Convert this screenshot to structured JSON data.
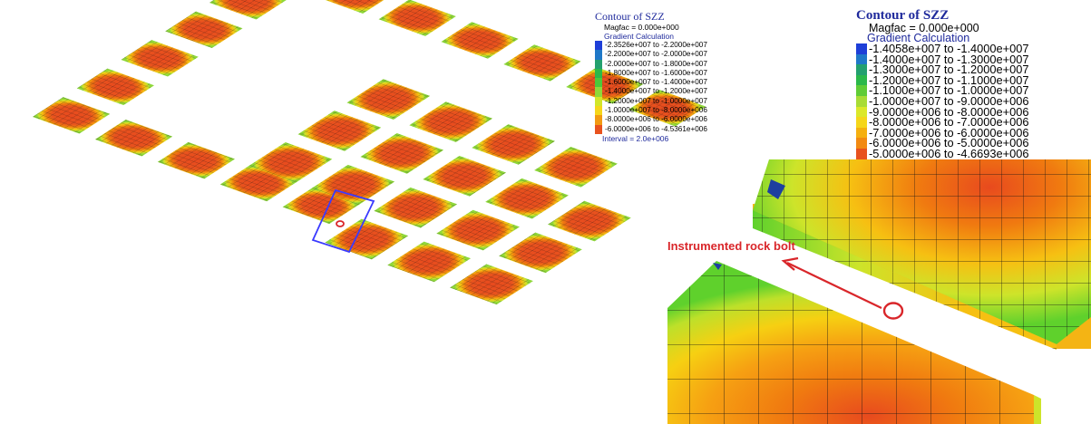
{
  "colors": {
    "core": "#e84a1e",
    "mid": "#f07a10",
    "outer": "#f6c012",
    "edge": "#cde42a",
    "ring_green": "#5fd12c",
    "deep_green": "#1f8f2a",
    "deep_blue": "#1d3fa0",
    "mesh": "#141414",
    "legend_title": "#1f2a9c",
    "annotation": "#d9262a",
    "bolt_box": "#3a3aff"
  },
  "legend_left": {
    "title": "Contour of SZZ",
    "magfac": "Magfac = 0.000e+000",
    "subtitle": "Gradient Calculation",
    "interval": "Interval = 2.0e+006",
    "rows": [
      {
        "label": "-2.3526e+007 to -2.2000e+007",
        "color": "#1e3fd8"
      },
      {
        "label": "-2.2000e+007 to -2.0000e+007",
        "color": "#1f78c8"
      },
      {
        "label": "-2.0000e+007 to -1.8000e+007",
        "color": "#23a06f"
      },
      {
        "label": "-1.8000e+007 to -1.6000e+007",
        "color": "#2bb84a"
      },
      {
        "label": "-1.6000e+007 to -1.4000e+007",
        "color": "#4cc83a"
      },
      {
        "label": "-1.4000e+007 to -1.2000e+007",
        "color": "#8fd83a"
      },
      {
        "label": "-1.2000e+007 to -1.0000e+007",
        "color": "#d2e62a"
      },
      {
        "label": "-1.0000e+007 to -8.0000e+006",
        "color": "#f5d61a"
      },
      {
        "label": "-8.0000e+006 to -6.0000e+006",
        "color": "#f29a12"
      },
      {
        "label": "-6.0000e+006 to -4.5361e+006",
        "color": "#e8521e"
      }
    ]
  },
  "legend_right": {
    "title": "Contour of SZZ",
    "magfac": "Magfac = 0.000e+000",
    "subtitle": "Gradient Calculation",
    "rows": [
      {
        "label": "-1.4058e+007 to -1.4000e+007",
        "color": "#1e3fd8"
      },
      {
        "label": "-1.4000e+007 to -1.3000e+007",
        "color": "#1f78c8"
      },
      {
        "label": "-1.3000e+007 to -1.2000e+007",
        "color": "#23a06f"
      },
      {
        "label": "-1.2000e+007 to -1.1000e+007",
        "color": "#2bb84a"
      },
      {
        "label": "-1.1000e+007 to -1.0000e+007",
        "color": "#60cc36"
      },
      {
        "label": "-1.0000e+007 to -9.0000e+006",
        "color": "#a8dc36"
      },
      {
        "label": "-9.0000e+006 to -8.0000e+006",
        "color": "#dbe82a"
      },
      {
        "label": "-8.0000e+006 to -7.0000e+006",
        "color": "#f5d61a"
      },
      {
        "label": "-7.0000e+006 to -6.0000e+006",
        "color": "#f5b010"
      },
      {
        "label": "-6.0000e+006 to -5.0000e+006",
        "color": "#f28a12"
      },
      {
        "label": "-5.0000e+006 to -4.6693e+006",
        "color": "#e8521e"
      }
    ]
  },
  "annotation": {
    "label": "Instrumented rock bolt"
  }
}
